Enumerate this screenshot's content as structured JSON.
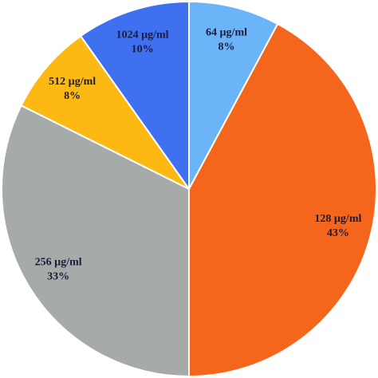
{
  "chart_data": {
    "type": "pie",
    "categories": [
      "64 µg/ml",
      "128 µg/ml",
      "256 µg/ml",
      "512 µg/ml",
      "1024 µg/ml"
    ],
    "values": [
      8,
      43,
      33,
      8,
      10
    ],
    "value_labels": [
      "8%",
      "43%",
      "33%",
      "8%",
      "10%"
    ],
    "colors": [
      "#6cb4f8",
      "#f4661b",
      "#a6aaa8",
      "#fdb913",
      "#3e70f0"
    ]
  }
}
